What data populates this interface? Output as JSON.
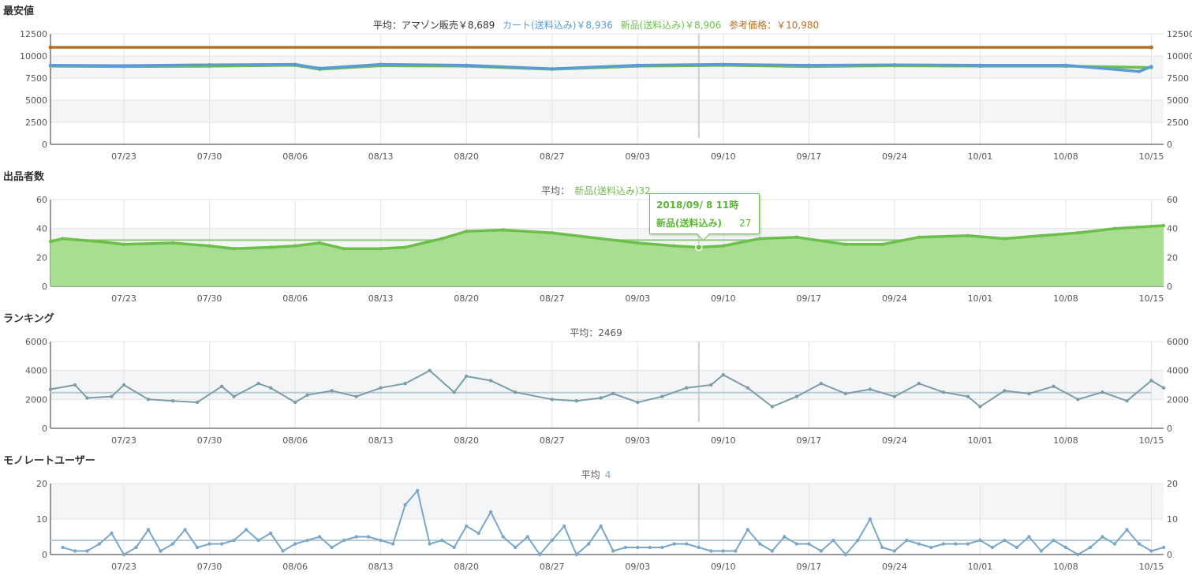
{
  "panels": [
    {
      "title": "最安値",
      "subtitle": [
        {
          "label": "平均：アマゾン販売￥8,689",
          "color": "#333333"
        },
        {
          "label": "カート(送料込み)￥8,936",
          "color": "#5b9bd5"
        },
        {
          "label": "新品(送料込み)￥8,906",
          "color": "#6cc04a"
        },
        {
          "label": "参考価格：￥10,980",
          "color": "#b5702a"
        }
      ]
    },
    {
      "title": "出品者数",
      "subtitle": [
        {
          "label": "平均：",
          "color": "#555555"
        },
        {
          "label": "新品(送料込み)32",
          "color": "#6cc04a"
        }
      ]
    },
    {
      "title": "ランキング",
      "subtitle": [
        {
          "label": "平均：2469",
          "color": "#555555"
        }
      ]
    },
    {
      "title": "モノレートユーザー",
      "subtitle": [
        {
          "label": "平均",
          "color": "#555555"
        },
        {
          "label": "4",
          "color": "#7aa6c8"
        }
      ]
    }
  ],
  "tooltip": {
    "date": "2018/09/ 8 11時",
    "series": "新品(送料込み)",
    "value": "27"
  },
  "chart_data": [
    {
      "type": "line",
      "title": "最安値",
      "x_range": [
        "2018-07-17",
        "2018-10-16"
      ],
      "x_tick_labels": [
        "07/23",
        "07/30",
        "08/06",
        "08/13",
        "08/20",
        "08/27",
        "09/03",
        "09/10",
        "09/17",
        "09/24",
        "10/01",
        "10/08",
        "10/15"
      ],
      "ylim": [
        0,
        12500
      ],
      "yticks": [
        0,
        2500,
        5000,
        7500,
        10000,
        12500
      ],
      "grid": true,
      "series": [
        {
          "name": "参考価格",
          "color": "#b5702a",
          "x": [
            "07/17",
            "10/15"
          ],
          "values": [
            10980,
            10980
          ]
        },
        {
          "name": "新品(送料込み)",
          "color": "#6cc04a",
          "x": [
            "07/17",
            "07/23",
            "07/30",
            "08/06",
            "08/08",
            "08/13",
            "08/20",
            "08/27",
            "09/03",
            "09/10",
            "09/17",
            "09/24",
            "10/01",
            "10/08",
            "10/15"
          ],
          "values": [
            8850,
            8800,
            8850,
            8950,
            8500,
            8900,
            8850,
            8500,
            8850,
            8950,
            8800,
            8900,
            8850,
            8850,
            8700
          ]
        },
        {
          "name": "カート(送料込み)",
          "color": "#5b9bd5",
          "x": [
            "07/17",
            "07/23",
            "07/30",
            "08/06",
            "08/08",
            "08/13",
            "08/20",
            "08/27",
            "09/03",
            "09/10",
            "09/17",
            "09/24",
            "10/01",
            "10/08",
            "10/14",
            "10/15"
          ],
          "values": [
            8950,
            8900,
            9000,
            9050,
            8600,
            9050,
            8950,
            8550,
            8950,
            9050,
            8950,
            9000,
            8950,
            8950,
            8250,
            8800
          ]
        }
      ]
    },
    {
      "type": "area",
      "title": "出品者数",
      "x_range": [
        "2018-07-17",
        "2018-10-16"
      ],
      "x_tick_labels": [
        "07/23",
        "07/30",
        "08/06",
        "08/13",
        "08/20",
        "08/27",
        "09/03",
        "09/10",
        "09/17",
        "09/24",
        "10/01",
        "10/08",
        "10/15"
      ],
      "ylim": [
        0,
        60
      ],
      "yticks": [
        0,
        20,
        40,
        60
      ],
      "grid": true,
      "average": 32,
      "series": [
        {
          "name": "新品(送料込み)",
          "color": "#6cc04a",
          "x": [
            "07/17",
            "07/18",
            "07/21",
            "07/23",
            "07/27",
            "07/30",
            "08/01",
            "08/04",
            "08/06",
            "08/08",
            "08/10",
            "08/13",
            "08/15",
            "08/18",
            "08/20",
            "08/23",
            "08/27",
            "08/31",
            "09/03",
            "09/06",
            "09/08",
            "09/10",
            "09/13",
            "09/16",
            "09/20",
            "09/23",
            "09/26",
            "09/30",
            "10/03",
            "10/06",
            "10/09",
            "10/12",
            "10/16"
          ],
          "values": [
            31,
            33,
            31,
            29,
            30,
            28,
            26,
            27,
            28,
            30,
            26,
            26,
            27,
            33,
            38,
            39,
            37,
            33,
            30,
            28,
            27,
            28,
            33,
            34,
            29,
            29,
            34,
            35,
            33,
            35,
            37,
            40,
            42
          ]
        }
      ]
    },
    {
      "type": "line",
      "title": "ランキング",
      "x_range": [
        "2018-07-17",
        "2018-10-16"
      ],
      "x_tick_labels": [
        "07/23",
        "07/30",
        "08/06",
        "08/13",
        "08/20",
        "08/27",
        "09/03",
        "09/10",
        "09/17",
        "09/24",
        "10/01",
        "10/08",
        "10/15"
      ],
      "ylim": [
        0,
        6000
      ],
      "yticks": [
        0,
        2000,
        4000,
        6000
      ],
      "grid": true,
      "average": 2469,
      "series": [
        {
          "name": "ランキング",
          "color": "#7a9ea8",
          "x": [
            "07/17",
            "07/19",
            "07/20",
            "07/22",
            "07/23",
            "07/25",
            "07/27",
            "07/29",
            "07/31",
            "08/01",
            "08/03",
            "08/04",
            "08/06",
            "08/07",
            "08/09",
            "08/11",
            "08/13",
            "08/15",
            "08/17",
            "08/19",
            "08/20",
            "08/22",
            "08/24",
            "08/27",
            "08/29",
            "08/31",
            "09/01",
            "09/03",
            "09/05",
            "09/07",
            "09/09",
            "09/10",
            "09/12",
            "09/14",
            "09/16",
            "09/18",
            "09/20",
            "09/22",
            "09/24",
            "09/26",
            "09/28",
            "09/30",
            "10/01",
            "10/03",
            "10/05",
            "10/07",
            "10/09",
            "10/11",
            "10/13",
            "10/15",
            "10/16"
          ],
          "values": [
            2700,
            3000,
            2100,
            2200,
            3000,
            2000,
            1900,
            1800,
            2900,
            2200,
            3100,
            2800,
            1800,
            2300,
            2600,
            2200,
            2800,
            3100,
            4000,
            2500,
            3600,
            3300,
            2500,
            2000,
            1900,
            2100,
            2400,
            1800,
            2200,
            2800,
            3000,
            3700,
            2800,
            1500,
            2200,
            3100,
            2400,
            2700,
            2200,
            3100,
            2500,
            2200,
            1500,
            2600,
            2400,
            2900,
            2000,
            2500,
            1900,
            3300,
            2800
          ]
        }
      ]
    },
    {
      "type": "line",
      "title": "モノレートユーザー",
      "x_range": [
        "2018-07-17",
        "2018-10-16"
      ],
      "x_tick_labels": [
        "07/23",
        "07/30",
        "08/06",
        "08/13",
        "08/20",
        "08/27",
        "09/03",
        "09/10",
        "09/17",
        "09/24",
        "10/01",
        "10/08",
        "10/15"
      ],
      "ylim": [
        0,
        20
      ],
      "yticks": [
        0,
        10,
        20
      ],
      "grid": true,
      "average": 4,
      "series": [
        {
          "name": "モノレートユーザー",
          "color": "#7aa6c8",
          "x": [
            "07/18",
            "07/19",
            "07/20",
            "07/21",
            "07/22",
            "07/23",
            "07/24",
            "07/25",
            "07/26",
            "07/27",
            "07/28",
            "07/29",
            "07/30",
            "07/31",
            "08/01",
            "08/02",
            "08/03",
            "08/04",
            "08/05",
            "08/06",
            "08/07",
            "08/08",
            "08/09",
            "08/10",
            "08/11",
            "08/12",
            "08/13",
            "08/14",
            "08/15",
            "08/16",
            "08/17",
            "08/18",
            "08/19",
            "08/20",
            "08/21",
            "08/22",
            "08/23",
            "08/24",
            "08/25",
            "08/26",
            "08/27",
            "08/28",
            "08/29",
            "08/30",
            "08/31",
            "09/01",
            "09/02",
            "09/03",
            "09/04",
            "09/05",
            "09/06",
            "09/07",
            "09/08",
            "09/09",
            "09/10",
            "09/11",
            "09/12",
            "09/13",
            "09/14",
            "09/15",
            "09/16",
            "09/17",
            "09/18",
            "09/19",
            "09/20",
            "09/21",
            "09/22",
            "09/23",
            "09/24",
            "09/25",
            "09/26",
            "09/27",
            "09/28",
            "09/29",
            "09/30",
            "10/01",
            "10/02",
            "10/03",
            "10/04",
            "10/05",
            "10/06",
            "10/07",
            "10/08",
            "10/09",
            "10/10",
            "10/11",
            "10/12",
            "10/13",
            "10/14",
            "10/15",
            "10/16"
          ],
          "values": [
            2,
            1,
            1,
            3,
            6,
            0,
            2,
            7,
            1,
            3,
            7,
            2,
            3,
            3,
            4,
            7,
            4,
            6,
            1,
            3,
            4,
            5,
            2,
            4,
            5,
            5,
            4,
            3,
            14,
            18,
            3,
            4,
            2,
            8,
            6,
            12,
            5,
            2,
            5,
            0,
            4,
            8,
            0,
            3,
            8,
            1,
            2,
            2,
            2,
            2,
            3,
            3,
            2,
            1,
            1,
            1,
            7,
            3,
            1,
            5,
            3,
            3,
            1,
            4,
            0,
            4,
            10,
            2,
            1,
            4,
            3,
            2,
            3,
            3,
            3,
            4,
            2,
            4,
            2,
            5,
            1,
            4,
            2,
            0,
            2,
            5,
            3,
            7,
            3,
            1,
            2
          ]
        }
      ]
    }
  ]
}
